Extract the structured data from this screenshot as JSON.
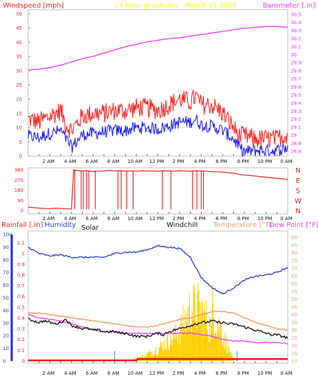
{
  "header": {
    "left_label": "Windspeed [mph]",
    "center_label": "24 hour graph day : March 11 2026",
    "right_label": "Barometer [.in]"
  },
  "panel3_labels": {
    "rainfall": "Rainfall [.in]",
    "humidity": "Humidity",
    "solar": "Solar",
    "windchill": "Windchill",
    "temperature": "Temperature [°F]",
    "dewpoint": "Dew Point [°F]"
  },
  "colors": {
    "windspeed": "#ff2020",
    "gust": "#ff2020",
    "avg": "#1a1aff",
    "barometer": "#ff33ff",
    "direction": "#ee2222",
    "humidity": "#2b3fd0",
    "temperature": "#f0a070",
    "dewpoint": "#ff33ff",
    "windchill": "#111111",
    "solar": "#ffd000",
    "rainfall": "#ff0000",
    "left_axis_text": "#ff2020",
    "right_axis_text": "#ff33ff",
    "temp_axis_text": "#f0a070"
  },
  "time_ticks": [
    "2 AM",
    "4 AM",
    "6 AM",
    "8 AM",
    "10 AM",
    "12 PM",
    "2 PM",
    "4 PM",
    "6 PM",
    "8 PM",
    "10 PM",
    "0 AM"
  ],
  "chart_data": [
    {
      "type": "line",
      "name": "wind_barometer",
      "x_hours": [
        0,
        24
      ],
      "left_axis": {
        "label": "Windspeed [mph]",
        "ticks": [
          0,
          5,
          10,
          15,
          20,
          25,
          30,
          35,
          40,
          45,
          50
        ],
        "range": [
          0,
          50
        ]
      },
      "right_axis": {
        "label": "Barometer [.in]",
        "ticks": [
          "28.8",
          "28.9",
          "29",
          "29.1",
          "29.2",
          "29.3",
          "29.4",
          "29.5",
          "29.6",
          "29.7",
          "29.8",
          "29.9",
          "30",
          "30.1",
          "30.2",
          "30.3",
          "30.4",
          "30.5"
        ],
        "range": [
          28.8,
          30.5
        ]
      },
      "barometer": {
        "hours": [
          0,
          1,
          2,
          3,
          4,
          5,
          6,
          7,
          8,
          9,
          10,
          11,
          12,
          13,
          14,
          15,
          16,
          17,
          18,
          19,
          20,
          21,
          22,
          23,
          24
        ],
        "values": [
          29.81,
          29.82,
          29.84,
          29.87,
          29.91,
          29.95,
          29.98,
          30.02,
          30.06,
          30.1,
          30.13,
          30.16,
          30.18,
          30.2,
          30.21,
          30.23,
          30.25,
          30.27,
          30.29,
          30.31,
          30.33,
          30.34,
          30.35,
          30.35,
          30.34
        ]
      },
      "gust": {
        "hours": [
          0,
          1,
          2,
          3,
          3.5,
          4,
          5,
          6,
          7,
          8,
          9,
          10,
          11,
          12,
          13,
          14,
          15,
          15.5,
          16,
          17,
          18,
          19,
          19.5,
          20,
          21,
          22,
          23,
          24
        ],
        "values": [
          13,
          12,
          14,
          16,
          11,
          9,
          14,
          15,
          15,
          16,
          16,
          17,
          17,
          16,
          18,
          20,
          19,
          21,
          18,
          18,
          15,
          10,
          7,
          7,
          6,
          6,
          6,
          8
        ]
      },
      "avg_speed": {
        "hours": [
          0,
          1,
          2,
          3,
          3.5,
          4,
          5,
          6,
          7,
          8,
          9,
          10,
          11,
          12,
          13,
          14,
          15,
          15.5,
          16,
          17,
          18,
          19,
          19.5,
          20,
          21,
          22,
          23,
          24
        ],
        "values": [
          7,
          6.5,
          8,
          9,
          6,
          3,
          7.5,
          8,
          8.5,
          9,
          9,
          10,
          10,
          9.5,
          10.5,
          12,
          12,
          13,
          11,
          10.5,
          9,
          6,
          3,
          1.5,
          2,
          2,
          2,
          3
        ]
      }
    },
    {
      "type": "scatter",
      "name": "wind_direction",
      "x_hours": [
        0,
        24
      ],
      "left_axis": {
        "ticks": [
          0,
          90,
          180,
          270,
          360
        ],
        "range": [
          0,
          360
        ]
      },
      "right_axis": {
        "labels": [
          "N",
          "W",
          "S",
          "E",
          "N"
        ]
      },
      "hours": [
        0,
        0.5,
        1,
        1.5,
        2,
        2.5,
        3,
        3.5,
        4,
        4.2,
        4.5,
        4.8,
        5,
        5.5,
        6,
        6.5,
        7,
        7.5,
        8,
        8.5,
        9,
        9.5,
        10,
        10.5,
        11,
        11.5,
        12,
        12.5,
        13,
        13.5,
        14,
        14.5,
        15,
        15.5,
        16,
        16.5,
        17,
        17.5,
        18,
        18.5,
        19,
        19.5,
        20,
        20.5,
        21,
        21.5,
        22,
        22.5,
        23,
        23.5,
        24
      ],
      "values": [
        30,
        25,
        20,
        18,
        15,
        20,
        18,
        15,
        12,
        360,
        355,
        350,
        350,
        352,
        345,
        348,
        350,
        355,
        350,
        352,
        348,
        350,
        348,
        352,
        350,
        350,
        348,
        352,
        350,
        348,
        352,
        350,
        348,
        352,
        350,
        348,
        345,
        342,
        340,
        335,
        330,
        320,
        315,
        310,
        305,
        300,
        295,
        290,
        285,
        280,
        275
      ],
      "gaps_hours": [
        4.3,
        4.9,
        5.1,
        5.4,
        5.6,
        6.2,
        8.3,
        8.6,
        9.1,
        9.7,
        12.4,
        13.2,
        15.2,
        15.6,
        16.0,
        16.2
      ],
      "gap_bottom": 10
    },
    {
      "type": "line",
      "name": "temperature_humidity",
      "x_hours": [
        0,
        24
      ],
      "left_axis": {
        "ticks": [
          0,
          10,
          20,
          30,
          40,
          50,
          60,
          70,
          80,
          90,
          100
        ],
        "range": [
          0,
          100
        ]
      },
      "inner_axis": {
        "ticks": [
          "0",
          "0.1",
          "0.2",
          "0.3",
          "0.4",
          "0.5",
          "0.6",
          "0.7",
          "0.8",
          "0.9",
          "1",
          "1.1"
        ],
        "range": [
          0,
          1.1
        ]
      },
      "right_axis": {
        "ticks": [
          10,
          15,
          20,
          25,
          30,
          35,
          40,
          45,
          50,
          55,
          60,
          65,
          70,
          75,
          80,
          85,
          90
        ],
        "range": [
          10,
          90
        ]
      },
      "humidity": {
        "hours": [
          0,
          1,
          2,
          3,
          4,
          5,
          6,
          7,
          8,
          9,
          10,
          11,
          12,
          13,
          14,
          15,
          16,
          17,
          18,
          19,
          20,
          21,
          22,
          23,
          24
        ],
        "values": [
          90,
          85,
          83,
          84,
          82,
          82,
          82,
          82,
          85,
          86,
          86,
          88,
          91,
          90,
          89,
          82,
          66,
          58,
          53,
          58,
          64,
          67,
          68,
          70,
          74
        ]
      },
      "temperature": {
        "hours": [
          0,
          1,
          2,
          3,
          4,
          5,
          6,
          7,
          8,
          9,
          10,
          11,
          12,
          13,
          14,
          15,
          16,
          17,
          18,
          19,
          20,
          21,
          22,
          23,
          24
        ],
        "values": [
          41,
          41,
          40,
          39,
          38,
          37,
          36,
          35,
          34,
          33,
          32,
          32,
          33,
          35,
          37,
          38,
          40,
          42,
          42,
          41,
          38,
          35,
          33,
          31,
          30
        ]
      },
      "dewpoint": {
        "hours": [
          0,
          1,
          2,
          3,
          4,
          5,
          6,
          7,
          8,
          9,
          10,
          11,
          12,
          13,
          14,
          15,
          16,
          17,
          18,
          19,
          20,
          21,
          22,
          23,
          24
        ],
        "values": [
          40,
          38,
          37,
          36,
          34,
          32,
          30,
          29,
          29,
          28,
          28,
          28,
          28,
          28,
          28,
          28,
          27,
          26,
          24,
          23,
          23,
          22,
          22,
          22,
          21
        ]
      },
      "windchill": {
        "hours": [
          0,
          0.5,
          1,
          1.5,
          2,
          2.5,
          3,
          3.5,
          4,
          4.5,
          5,
          5.5,
          6,
          6.5,
          7,
          7.5,
          8,
          8.5,
          9,
          9.5,
          10,
          10.5,
          11,
          11.5,
          12,
          12.5,
          13,
          13.5,
          14,
          14.5,
          15,
          15.5,
          16,
          16.5,
          17,
          17.5,
          18,
          18.5,
          19,
          19.5,
          20,
          20.5,
          21,
          21.5,
          22,
          22.5,
          23,
          23.5,
          24
        ],
        "values": [
          37,
          36,
          35,
          36,
          35,
          34,
          35,
          37,
          33,
          32,
          31,
          31,
          30,
          30,
          29,
          29,
          29,
          28,
          28,
          27,
          26,
          26,
          26,
          27,
          28,
          27,
          29,
          30,
          31,
          32,
          33,
          34,
          35,
          35,
          36,
          35,
          35,
          34,
          34,
          33,
          32,
          31,
          30,
          29,
          28,
          27,
          27,
          26,
          25
        ]
      },
      "solar_peak_hours": [
        14.0,
        17.0
      ],
      "solar_pct_of_peak": 0.52
    }
  ]
}
